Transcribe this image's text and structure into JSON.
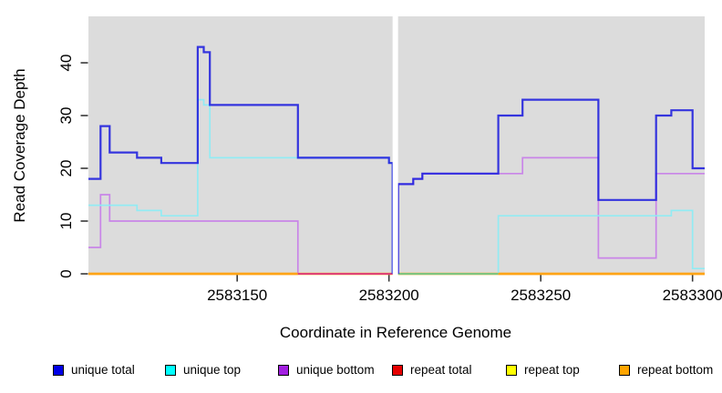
{
  "chart_data": {
    "type": "line",
    "subtype": "step-coverage-plot",
    "title": "",
    "xlabel": "Coordinate in Reference Genome",
    "ylabel": "Read Coverage Depth",
    "xlim": [
      2583101,
      2583304
    ],
    "ylim": [
      0,
      48.8
    ],
    "x_ticks": [
      2583150,
      2583200,
      2583250,
      2583300
    ],
    "y_ticks": [
      0,
      10,
      20,
      30,
      40
    ],
    "grid": false,
    "plot_background": "#DCDCDC",
    "gap": {
      "from": 2583201.2,
      "to": 2583203,
      "color": "#FFFFFF"
    },
    "series": [
      {
        "name": "unique total",
        "legend_color": "#0000E6",
        "line_color": "#1C1CDE",
        "line_width": 2.2,
        "segments": [
          {
            "points": [
              [
                2583101,
                18
              ],
              [
                2583105,
                28
              ],
              [
                2583108,
                23
              ],
              [
                2583117,
                22
              ],
              [
                2583125,
                21
              ],
              [
                2583137,
                43
              ],
              [
                2583139,
                42
              ],
              [
                2583141,
                32
              ],
              [
                2583170,
                22
              ],
              [
                2583200,
                21
              ],
              [
                2583201.2,
                0
              ]
            ],
            "end": 2583201.2
          },
          {
            "points": [
              [
                2583203,
                0
              ],
              [
                2583203,
                17
              ],
              [
                2583208,
                18
              ],
              [
                2583211,
                19
              ],
              [
                2583236,
                30
              ],
              [
                2583244,
                33
              ],
              [
                2583269,
                14
              ],
              [
                2583288,
                30
              ],
              [
                2583293,
                31
              ],
              [
                2583300,
                20
              ]
            ],
            "end": 2583304
          }
        ]
      },
      {
        "name": "unique top",
        "legend_color": "#00FFFF",
        "line_color": "#8DEBF3",
        "line_width": 1.7,
        "segments": [
          {
            "points": [
              [
                2583101,
                13
              ],
              [
                2583117,
                12
              ],
              [
                2583125,
                11
              ],
              [
                2583137,
                33
              ],
              [
                2583139,
                32
              ],
              [
                2583141,
                22
              ],
              [
                2583200,
                21
              ],
              [
                2583201.2,
                0
              ]
            ],
            "end": 2583201.2
          },
          {
            "points": [
              [
                2583203,
                0
              ],
              [
                2583236,
                11
              ],
              [
                2583293,
                12
              ],
              [
                2583300,
                1
              ]
            ],
            "end": 2583304
          }
        ]
      },
      {
        "name": "unique bottom",
        "legend_color": "#A21FE0",
        "line_color": "#C77FE8",
        "line_width": 1.7,
        "segments": [
          {
            "points": [
              [
                2583101,
                5
              ],
              [
                2583105,
                15
              ],
              [
                2583108,
                10
              ],
              [
                2583170,
                0
              ]
            ],
            "end": 2583201.2
          },
          {
            "points": [
              [
                2583203,
                0
              ],
              [
                2583203,
                17
              ],
              [
                2583208,
                18
              ],
              [
                2583211,
                19
              ],
              [
                2583244,
                22
              ],
              [
                2583269,
                3
              ],
              [
                2583288,
                19
              ]
            ],
            "end": 2583304
          }
        ]
      },
      {
        "name": "repeat total",
        "legend_color": "#E60000",
        "line_color": "#E60000",
        "line_width": 1.8,
        "segments": [
          {
            "points": [
              [
                2583101,
                0
              ]
            ],
            "end": 2583201.2
          },
          {
            "points": [
              [
                2583203,
                0
              ]
            ],
            "end": 2583304
          }
        ]
      },
      {
        "name": "repeat top",
        "legend_color": "#FFFF00",
        "line_color": "#FFFF00",
        "line_width": 1.8,
        "segments": [
          {
            "points": [
              [
                2583101,
                0
              ]
            ],
            "end": 2583201.2
          },
          {
            "points": [
              [
                2583203,
                0
              ]
            ],
            "end": 2583304
          }
        ]
      },
      {
        "name": "repeat bottom",
        "legend_color": "#FFA500",
        "line_color": "#FFA416",
        "line_width": 2.4,
        "segments": [
          {
            "points": [
              [
                2583101,
                0
              ]
            ],
            "end": 2583201.2
          },
          {
            "points": [
              [
                2583203,
                0
              ]
            ],
            "end": 2583304
          }
        ]
      }
    ],
    "baseline_zero_segments": [
      {
        "color": "#FFA416",
        "from": 2583101,
        "to": 2583170,
        "width": 2.4
      },
      {
        "color": "#E0396E",
        "from": 2583170,
        "to": 2583201.2,
        "width": 1.8
      },
      {
        "color": "#6DBE6D",
        "from": 2583203,
        "to": 2583236,
        "width": 1.6
      },
      {
        "color": "#FFA416",
        "from": 2583236,
        "to": 2583304,
        "width": 2.4
      }
    ]
  },
  "legend": {
    "items": [
      {
        "label": "unique total",
        "color": "#0000E6"
      },
      {
        "label": "unique top",
        "color": "#00FFFF"
      },
      {
        "label": "unique bottom",
        "color": "#A21FE0"
      },
      {
        "label": "repeat total",
        "color": "#E60000"
      },
      {
        "label": "repeat top",
        "color": "#FFFF00"
      },
      {
        "label": "repeat bottom",
        "color": "#FFA500"
      }
    ]
  }
}
